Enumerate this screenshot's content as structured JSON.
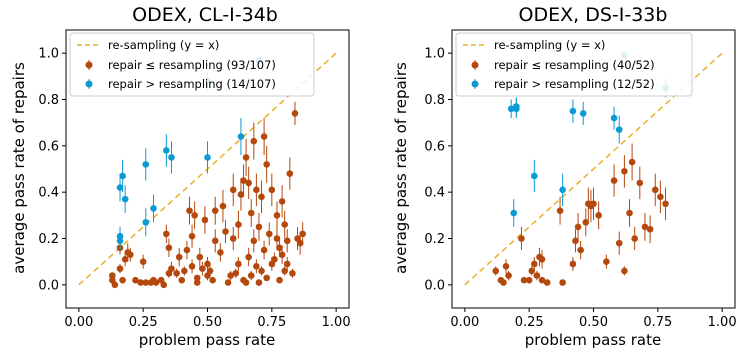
{
  "ylabel": "average pass rate of repairs",
  "colors": {
    "repair": "#b5480c",
    "resample": "#0a9ad4",
    "diagonal": "#e8b026"
  },
  "chart_data": [
    {
      "type": "scatter",
      "title": "ODEX, CL-I-34b",
      "xlabel": "problem pass rate",
      "ylabel": "average pass rate of repairs",
      "xlim": [
        -0.05,
        1.05
      ],
      "ylim": [
        -0.1,
        1.1
      ],
      "xticks": [
        "0.00",
        "0.25",
        "0.50",
        "0.75",
        "1.00"
      ],
      "yticks": [
        "0.0",
        "0.2",
        "0.4",
        "0.6",
        "0.8",
        "1.0"
      ],
      "legend_position": "top-left",
      "legend": [
        "re-sampling (y = x)",
        "repair ≤ resampling (93/107)",
        "repair > resampling (14/107)"
      ],
      "series": [
        {
          "points": [
            [
              0.13,
              0.04,
              0.01
            ],
            [
              0.13,
              0.02,
              0.01
            ],
            [
              0.14,
              0.0,
              0.01
            ],
            [
              0.16,
              0.07,
              0.02
            ],
            [
              0.16,
              0.16,
              0.03
            ],
            [
              0.17,
              0.02,
              0.01
            ],
            [
              0.18,
              0.11,
              0.03
            ],
            [
              0.19,
              0.14,
              0.04
            ],
            [
              0.2,
              0.13,
              0.03
            ],
            [
              0.22,
              0.02,
              0.01
            ],
            [
              0.24,
              0.01,
              0.01
            ],
            [
              0.25,
              0.1,
              0.03
            ],
            [
              0.26,
              0.01,
              0.01
            ],
            [
              0.28,
              0.01,
              0.01
            ],
            [
              0.29,
              0.02,
              0.01
            ],
            [
              0.3,
              0.01,
              0.01
            ],
            [
              0.32,
              0.02,
              0.01
            ],
            [
              0.33,
              0.0,
              0.01
            ],
            [
              0.34,
              0.22,
              0.04
            ],
            [
              0.35,
              0.05,
              0.02
            ],
            [
              0.35,
              0.16,
              0.04
            ],
            [
              0.36,
              0.07,
              0.03
            ],
            [
              0.38,
              0.05,
              0.02
            ],
            [
              0.39,
              0.12,
              0.04
            ],
            [
              0.4,
              0.02,
              0.01
            ],
            [
              0.41,
              0.06,
              0.02
            ],
            [
              0.42,
              0.15,
              0.04
            ],
            [
              0.43,
              0.32,
              0.06
            ],
            [
              0.44,
              0.08,
              0.03
            ],
            [
              0.44,
              0.21,
              0.05
            ],
            [
              0.45,
              0.3,
              0.06
            ],
            [
              0.46,
              0.03,
              0.01
            ],
            [
              0.46,
              0.01,
              0.01
            ],
            [
              0.47,
              0.12,
              0.04
            ],
            [
              0.48,
              0.07,
              0.03
            ],
            [
              0.49,
              0.28,
              0.06
            ],
            [
              0.5,
              0.04,
              0.02
            ],
            [
              0.5,
              0.09,
              0.03
            ],
            [
              0.51,
              0.06,
              0.02
            ],
            [
              0.52,
              0.02,
              0.01
            ],
            [
              0.53,
              0.32,
              0.06
            ],
            [
              0.53,
              0.19,
              0.05
            ],
            [
              0.55,
              0.14,
              0.04
            ],
            [
              0.56,
              0.34,
              0.07
            ],
            [
              0.57,
              0.23,
              0.05
            ],
            [
              0.58,
              0.01,
              0.01
            ],
            [
              0.59,
              0.04,
              0.02
            ],
            [
              0.6,
              0.2,
              0.05
            ],
            [
              0.6,
              0.41,
              0.07
            ],
            [
              0.61,
              0.05,
              0.02
            ],
            [
              0.62,
              0.09,
              0.03
            ],
            [
              0.62,
              0.26,
              0.06
            ],
            [
              0.63,
              0.39,
              0.07
            ],
            [
              0.64,
              0.45,
              0.07
            ],
            [
              0.64,
              0.02,
              0.01
            ],
            [
              0.65,
              0.01,
              0.01
            ],
            [
              0.65,
              0.55,
              0.08
            ],
            [
              0.66,
              0.12,
              0.04
            ],
            [
              0.66,
              0.44,
              0.07
            ],
            [
              0.67,
              0.31,
              0.06
            ],
            [
              0.67,
              0.04,
              0.02
            ],
            [
              0.68,
              0.19,
              0.05
            ],
            [
              0.68,
              0.62,
              0.08
            ],
            [
              0.69,
              0.08,
              0.03
            ],
            [
              0.69,
              0.41,
              0.07
            ],
            [
              0.7,
              0.01,
              0.01
            ],
            [
              0.7,
              0.25,
              0.06
            ],
            [
              0.71,
              0.06,
              0.02
            ],
            [
              0.71,
              0.38,
              0.07
            ],
            [
              0.72,
              0.15,
              0.04
            ],
            [
              0.72,
              0.64,
              0.08
            ],
            [
              0.73,
              0.03,
              0.01
            ],
            [
              0.73,
              0.52,
              0.08
            ],
            [
              0.74,
              0.22,
              0.05
            ],
            [
              0.75,
              0.41,
              0.07
            ],
            [
              0.75,
              0.09,
              0.03
            ],
            [
              0.76,
              0.11,
              0.03
            ],
            [
              0.77,
              0.3,
              0.06
            ],
            [
              0.77,
              0.2,
              0.05
            ],
            [
              0.78,
              0.02,
              0.01
            ],
            [
              0.78,
              0.16,
              0.04
            ],
            [
              0.79,
              0.13,
              0.04
            ],
            [
              0.79,
              0.36,
              0.07
            ],
            [
              0.8,
              0.06,
              0.02
            ],
            [
              0.8,
              0.26,
              0.06
            ],
            [
              0.81,
              0.09,
              0.03
            ],
            [
              0.81,
              0.19,
              0.05
            ],
            [
              0.82,
              0.48,
              0.07
            ],
            [
              0.83,
              0.05,
              0.02
            ],
            [
              0.84,
              0.74,
              0.05
            ],
            [
              0.85,
              0.2,
              0.05
            ],
            [
              0.86,
              0.18,
              0.05
            ],
            [
              0.87,
              0.22,
              0.05
            ]
          ]
        },
        {
          "points": [
            [
              0.16,
              0.21,
              0.04
            ],
            [
              0.16,
              0.19,
              0.04
            ],
            [
              0.16,
              0.42,
              0.06
            ],
            [
              0.17,
              0.47,
              0.07
            ],
            [
              0.18,
              0.37,
              0.06
            ],
            [
              0.26,
              0.27,
              0.06
            ],
            [
              0.26,
              0.52,
              0.07
            ],
            [
              0.29,
              0.33,
              0.06
            ],
            [
              0.34,
              0.58,
              0.07
            ],
            [
              0.36,
              0.55,
              0.07
            ],
            [
              0.5,
              0.55,
              0.07
            ],
            [
              0.5,
              0.88,
              0.04
            ],
            [
              0.63,
              0.64,
              0.08
            ],
            [
              0.7,
              0.97,
              0.02
            ]
          ]
        }
      ]
    },
    {
      "type": "scatter",
      "title": "ODEX, DS-I-33b",
      "xlabel": "problem pass rate",
      "ylabel": "average pass rate of repairs",
      "xlim": [
        -0.05,
        1.05
      ],
      "ylim": [
        -0.1,
        1.1
      ],
      "xticks": [
        "0.00",
        "0.25",
        "0.50",
        "0.75",
        "1.00"
      ],
      "yticks": [
        "0.0",
        "0.2",
        "0.4",
        "0.6",
        "0.8",
        "1.0"
      ],
      "legend_position": "top-left",
      "legend": [
        "re-sampling (y = x)",
        "repair ≤ resampling (40/52)",
        "repair > resampling (12/52)"
      ],
      "series": [
        {
          "points": [
            [
              0.12,
              0.06,
              0.02
            ],
            [
              0.14,
              0.02,
              0.01
            ],
            [
              0.15,
              0.01,
              0.01
            ],
            [
              0.16,
              0.08,
              0.03
            ],
            [
              0.17,
              0.04,
              0.02
            ],
            [
              0.22,
              0.2,
              0.05
            ],
            [
              0.23,
              0.02,
              0.01
            ],
            [
              0.25,
              0.02,
              0.01
            ],
            [
              0.26,
              0.06,
              0.02
            ],
            [
              0.27,
              0.09,
              0.03
            ],
            [
              0.28,
              0.04,
              0.02
            ],
            [
              0.29,
              0.12,
              0.04
            ],
            [
              0.3,
              0.02,
              0.01
            ],
            [
              0.3,
              0.11,
              0.04
            ],
            [
              0.32,
              0.01,
              0.01
            ],
            [
              0.37,
              0.32,
              0.06
            ],
            [
              0.38,
              0.01,
              0.01
            ],
            [
              0.42,
              0.09,
              0.03
            ],
            [
              0.43,
              0.19,
              0.05
            ],
            [
              0.44,
              0.25,
              0.06
            ],
            [
              0.45,
              0.15,
              0.04
            ],
            [
              0.47,
              0.27,
              0.06
            ],
            [
              0.48,
              0.35,
              0.07
            ],
            [
              0.49,
              0.34,
              0.07
            ],
            [
              0.5,
              0.35,
              0.07
            ],
            [
              0.52,
              0.3,
              0.06
            ],
            [
              0.55,
              0.1,
              0.03
            ],
            [
              0.58,
              0.45,
              0.07
            ],
            [
              0.6,
              0.18,
              0.05
            ],
            [
              0.62,
              0.06,
              0.02
            ],
            [
              0.62,
              0.49,
              0.07
            ],
            [
              0.64,
              0.31,
              0.06
            ],
            [
              0.65,
              0.53,
              0.08
            ],
            [
              0.66,
              0.2,
              0.05
            ],
            [
              0.68,
              0.44,
              0.07
            ],
            [
              0.7,
              0.25,
              0.06
            ],
            [
              0.72,
              0.24,
              0.06
            ],
            [
              0.74,
              0.41,
              0.07
            ],
            [
              0.76,
              0.38,
              0.07
            ],
            [
              0.78,
              0.35,
              0.07
            ]
          ]
        },
        {
          "points": [
            [
              0.18,
              0.76,
              0.04
            ],
            [
              0.19,
              0.31,
              0.06
            ],
            [
              0.2,
              0.76,
              0.04
            ],
            [
              0.2,
              0.77,
              0.04
            ],
            [
              0.27,
              0.47,
              0.07
            ],
            [
              0.38,
              0.41,
              0.07
            ],
            [
              0.42,
              0.75,
              0.05
            ],
            [
              0.46,
              0.74,
              0.05
            ],
            [
              0.58,
              0.72,
              0.05
            ],
            [
              0.6,
              0.67,
              0.06
            ],
            [
              0.62,
              0.99,
              0.01
            ],
            [
              0.78,
              0.85,
              0.04
            ]
          ]
        }
      ]
    }
  ]
}
